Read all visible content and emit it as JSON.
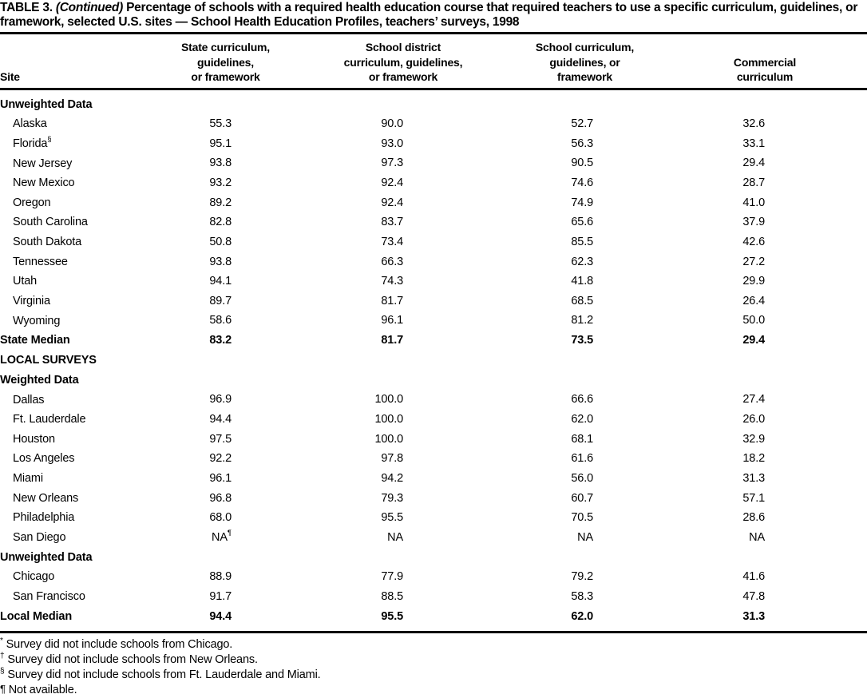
{
  "title": {
    "label": "TABLE 3.",
    "continued": "(Continued)",
    "text": "Percentage of schools with a required health education course that required teachers to use a specific curriculum, guidelines, or framework, selected U.S. sites — School Health Education Profiles, teachers’ surveys, 1998"
  },
  "table": {
    "col_site": "Site",
    "col_state": "State curriculum,\nguidelines,\nor framework",
    "col_district": "School district\ncurriculum, guidelines,\nor framework",
    "col_school": "School curriculum,\nguidelines, or\nframework",
    "col_commercial": "Commercial\ncurriculum",
    "rows": [
      {
        "type": "section",
        "label": "Unweighted Data"
      },
      {
        "label": "Alaska",
        "v": [
          "55.3",
          "90.0",
          "52.7",
          "32.6"
        ]
      },
      {
        "label": "Florida",
        "ls": "§",
        "v": [
          "95.1",
          "93.0",
          "56.3",
          "33.1"
        ]
      },
      {
        "label": "New Jersey",
        "v": [
          "93.8",
          "97.3",
          "90.5",
          "29.4"
        ]
      },
      {
        "label": "New Mexico",
        "v": [
          "93.2",
          "92.4",
          "74.6",
          "28.7"
        ]
      },
      {
        "label": "Oregon",
        "v": [
          "89.2",
          "92.4",
          "74.9",
          "41.0"
        ]
      },
      {
        "label": "South Carolina",
        "v": [
          "82.8",
          "83.7",
          "65.6",
          "37.9"
        ]
      },
      {
        "label": "South Dakota",
        "v": [
          "50.8",
          "73.4",
          "85.5",
          "42.6"
        ]
      },
      {
        "label": "Tennessee",
        "v": [
          "93.8",
          "66.3",
          "62.3",
          "27.2"
        ]
      },
      {
        "label": "Utah",
        "v": [
          "94.1",
          "74.3",
          "41.8",
          "29.9"
        ]
      },
      {
        "label": "Virginia",
        "v": [
          "89.7",
          "81.7",
          "68.5",
          "26.4"
        ]
      },
      {
        "label": "Wyoming",
        "v": [
          "58.6",
          "96.1",
          "81.2",
          "50.0"
        ]
      },
      {
        "type": "median",
        "label": "State Median",
        "v": [
          "83.2",
          "81.7",
          "73.5",
          "29.4"
        ]
      },
      {
        "type": "group",
        "label": "LOCAL SURVEYS"
      },
      {
        "type": "section",
        "label": "Weighted Data"
      },
      {
        "label": "Dallas",
        "v": [
          "96.9",
          "100.0",
          "66.6",
          "27.4"
        ]
      },
      {
        "label": "Ft. Lauderdale",
        "v": [
          "94.4",
          "100.0",
          "62.0",
          "26.0"
        ]
      },
      {
        "label": "Houston",
        "v": [
          "97.5",
          "100.0",
          "68.1",
          "32.9"
        ]
      },
      {
        "label": "Los Angeles",
        "v": [
          "92.2",
          "97.8",
          "61.6",
          "18.2"
        ]
      },
      {
        "label": "Miami",
        "v": [
          "96.1",
          "94.2",
          "56.0",
          "31.3"
        ]
      },
      {
        "label": "New Orleans",
        "v": [
          "96.8",
          "79.3",
          "60.7",
          "57.1"
        ]
      },
      {
        "label": "Philadelphia",
        "v": [
          "68.0",
          "95.5",
          "70.5",
          "28.6"
        ]
      },
      {
        "label": "San Diego",
        "s1": "¶",
        "v": [
          "NA",
          "NA",
          "NA",
          "NA"
        ]
      },
      {
        "type": "section",
        "label": "Unweighted Data"
      },
      {
        "label": "Chicago",
        "v": [
          "88.9",
          "77.9",
          "79.2",
          "41.6"
        ]
      },
      {
        "label": "San Francisco",
        "v": [
          "91.7",
          "88.5",
          "58.3",
          "47.8"
        ]
      },
      {
        "type": "median",
        "label": "Local Median",
        "v": [
          "94.4",
          "95.5",
          "62.0",
          "31.3"
        ]
      }
    ]
  },
  "footnotes": [
    {
      "marker": "*",
      "text": "Survey did not include schools from Chicago."
    },
    {
      "marker": "†",
      "text": "Survey did not include schools from New Orleans."
    },
    {
      "marker": "§",
      "text": "Survey did not include schools from Ft. Lauderdale and Miami."
    },
    {
      "marker": "¶",
      "text": "Not available."
    }
  ]
}
